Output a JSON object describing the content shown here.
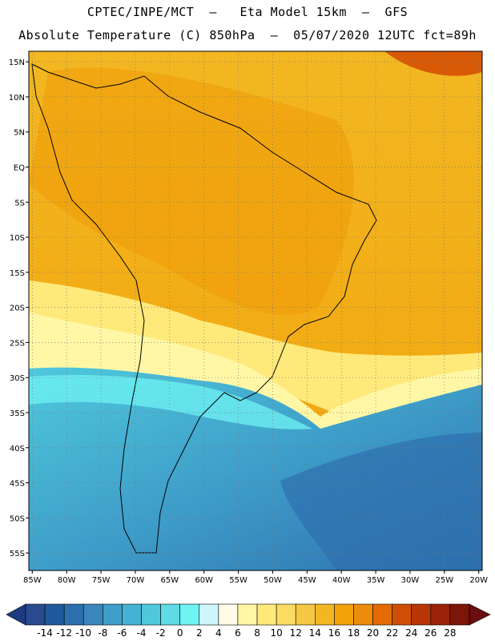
{
  "header": {
    "title_line1": "CPTEC/INPE/MCT  –   Eta Model 15km  –  GFS",
    "title_line2": "Absolute Temperature (C) 850hPa  –  05/07/2020 12UTC fct=89h"
  },
  "map": {
    "lat_labels": [
      "15N",
      "10N",
      "5N",
      "EQ",
      "5S",
      "10S",
      "15S",
      "20S",
      "25S",
      "30S",
      "35S",
      "40S",
      "45S",
      "50S",
      "55S"
    ],
    "lat_values": [
      15,
      10,
      5,
      0,
      -5,
      -10,
      -15,
      -20,
      -25,
      -30,
      -35,
      -40,
      -45,
      -50,
      -55
    ],
    "lon_labels": [
      "85W",
      "80W",
      "75W",
      "70W",
      "65W",
      "60W",
      "55W",
      "50W",
      "45W",
      "40W",
      "35W",
      "30W",
      "25W",
      "20W"
    ],
    "lon_values": [
      -85,
      -80,
      -75,
      -70,
      -65,
      -60,
      -55,
      -50,
      -45,
      -40,
      -35,
      -30,
      -25,
      -20
    ],
    "lon_range": [
      -85.5,
      -19.5
    ],
    "lat_range": [
      -57.5,
      16.5
    ],
    "grid": "dotted"
  },
  "colorbar": {
    "labels": [
      "-14",
      "-12",
      "-10",
      "-8",
      "-6",
      "-4",
      "-2",
      "0",
      "2",
      "4",
      "6",
      "8",
      "10",
      "12",
      "14",
      "16",
      "18",
      "20",
      "22",
      "24",
      "26",
      "28"
    ],
    "colors": [
      "#2a4a8f",
      "#1f5a9e",
      "#2d6fae",
      "#3b86bd",
      "#3f9ec9",
      "#44b3d3",
      "#4fc8dc",
      "#5edbe4",
      "#6ff3f3",
      "#cdf6fa",
      "#fffbe8",
      "#fff7a6",
      "#ffe97a",
      "#fbdb62",
      "#f5c843",
      "#f2b722",
      "#f2a30a",
      "#ec8c0a",
      "#e46a04",
      "#cf4e06",
      "#b93607",
      "#9c2208",
      "#7c150a"
    ],
    "under_color": "#1e3a80",
    "over_color": "#6a0e0e"
  }
}
